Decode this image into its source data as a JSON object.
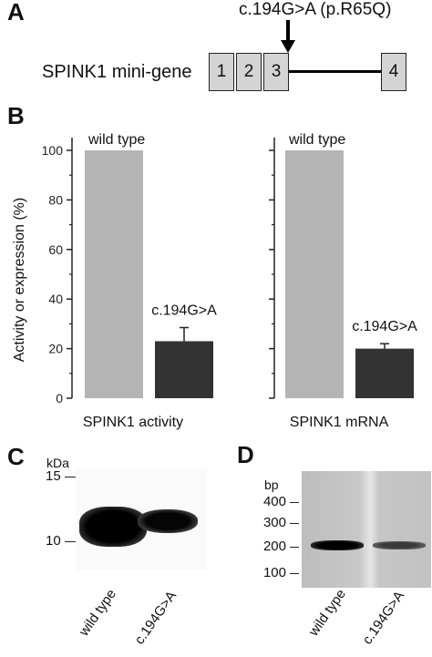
{
  "panel_a": {
    "letter": "A",
    "mutation_label": "c.194G>A (p.R65Q)",
    "gene_label": "SPINK1 mini-gene",
    "exons": [
      "1",
      "2",
      "3",
      "4"
    ]
  },
  "panel_b": {
    "letter": "B"
  },
  "panel_c": {
    "letter": "C",
    "unit": "kDa",
    "markers": [
      "15",
      "10"
    ],
    "lanes": [
      "wild type",
      "c.194G>A"
    ]
  },
  "panel_d": {
    "letter": "D",
    "unit": "bp",
    "markers": [
      "400",
      "300",
      "200",
      "100"
    ],
    "lanes": [
      "wild type",
      "c.194G>A"
    ]
  },
  "chart_data": [
    {
      "type": "bar",
      "categories": [
        "wild type",
        "c.194G>A"
      ],
      "values": [
        100,
        23
      ],
      "errors": [
        0,
        5.5
      ],
      "xlabel": "SPINK1 activity",
      "ylabel": "Activity or expression   (%)",
      "ylim": [
        0,
        100
      ],
      "yticks": [
        "0",
        "20",
        "40",
        "60",
        "80",
        "100"
      ],
      "bar_colors": [
        "#b4b4b4",
        "#333333"
      ]
    },
    {
      "type": "bar",
      "categories": [
        "wild type",
        "c.194G>A"
      ],
      "values": [
        100,
        20
      ],
      "errors": [
        0,
        2
      ],
      "xlabel": "SPINK1 mRNA",
      "ylim": [
        0,
        100
      ],
      "bar_colors": [
        "#b4b4b4",
        "#333333"
      ]
    }
  ]
}
